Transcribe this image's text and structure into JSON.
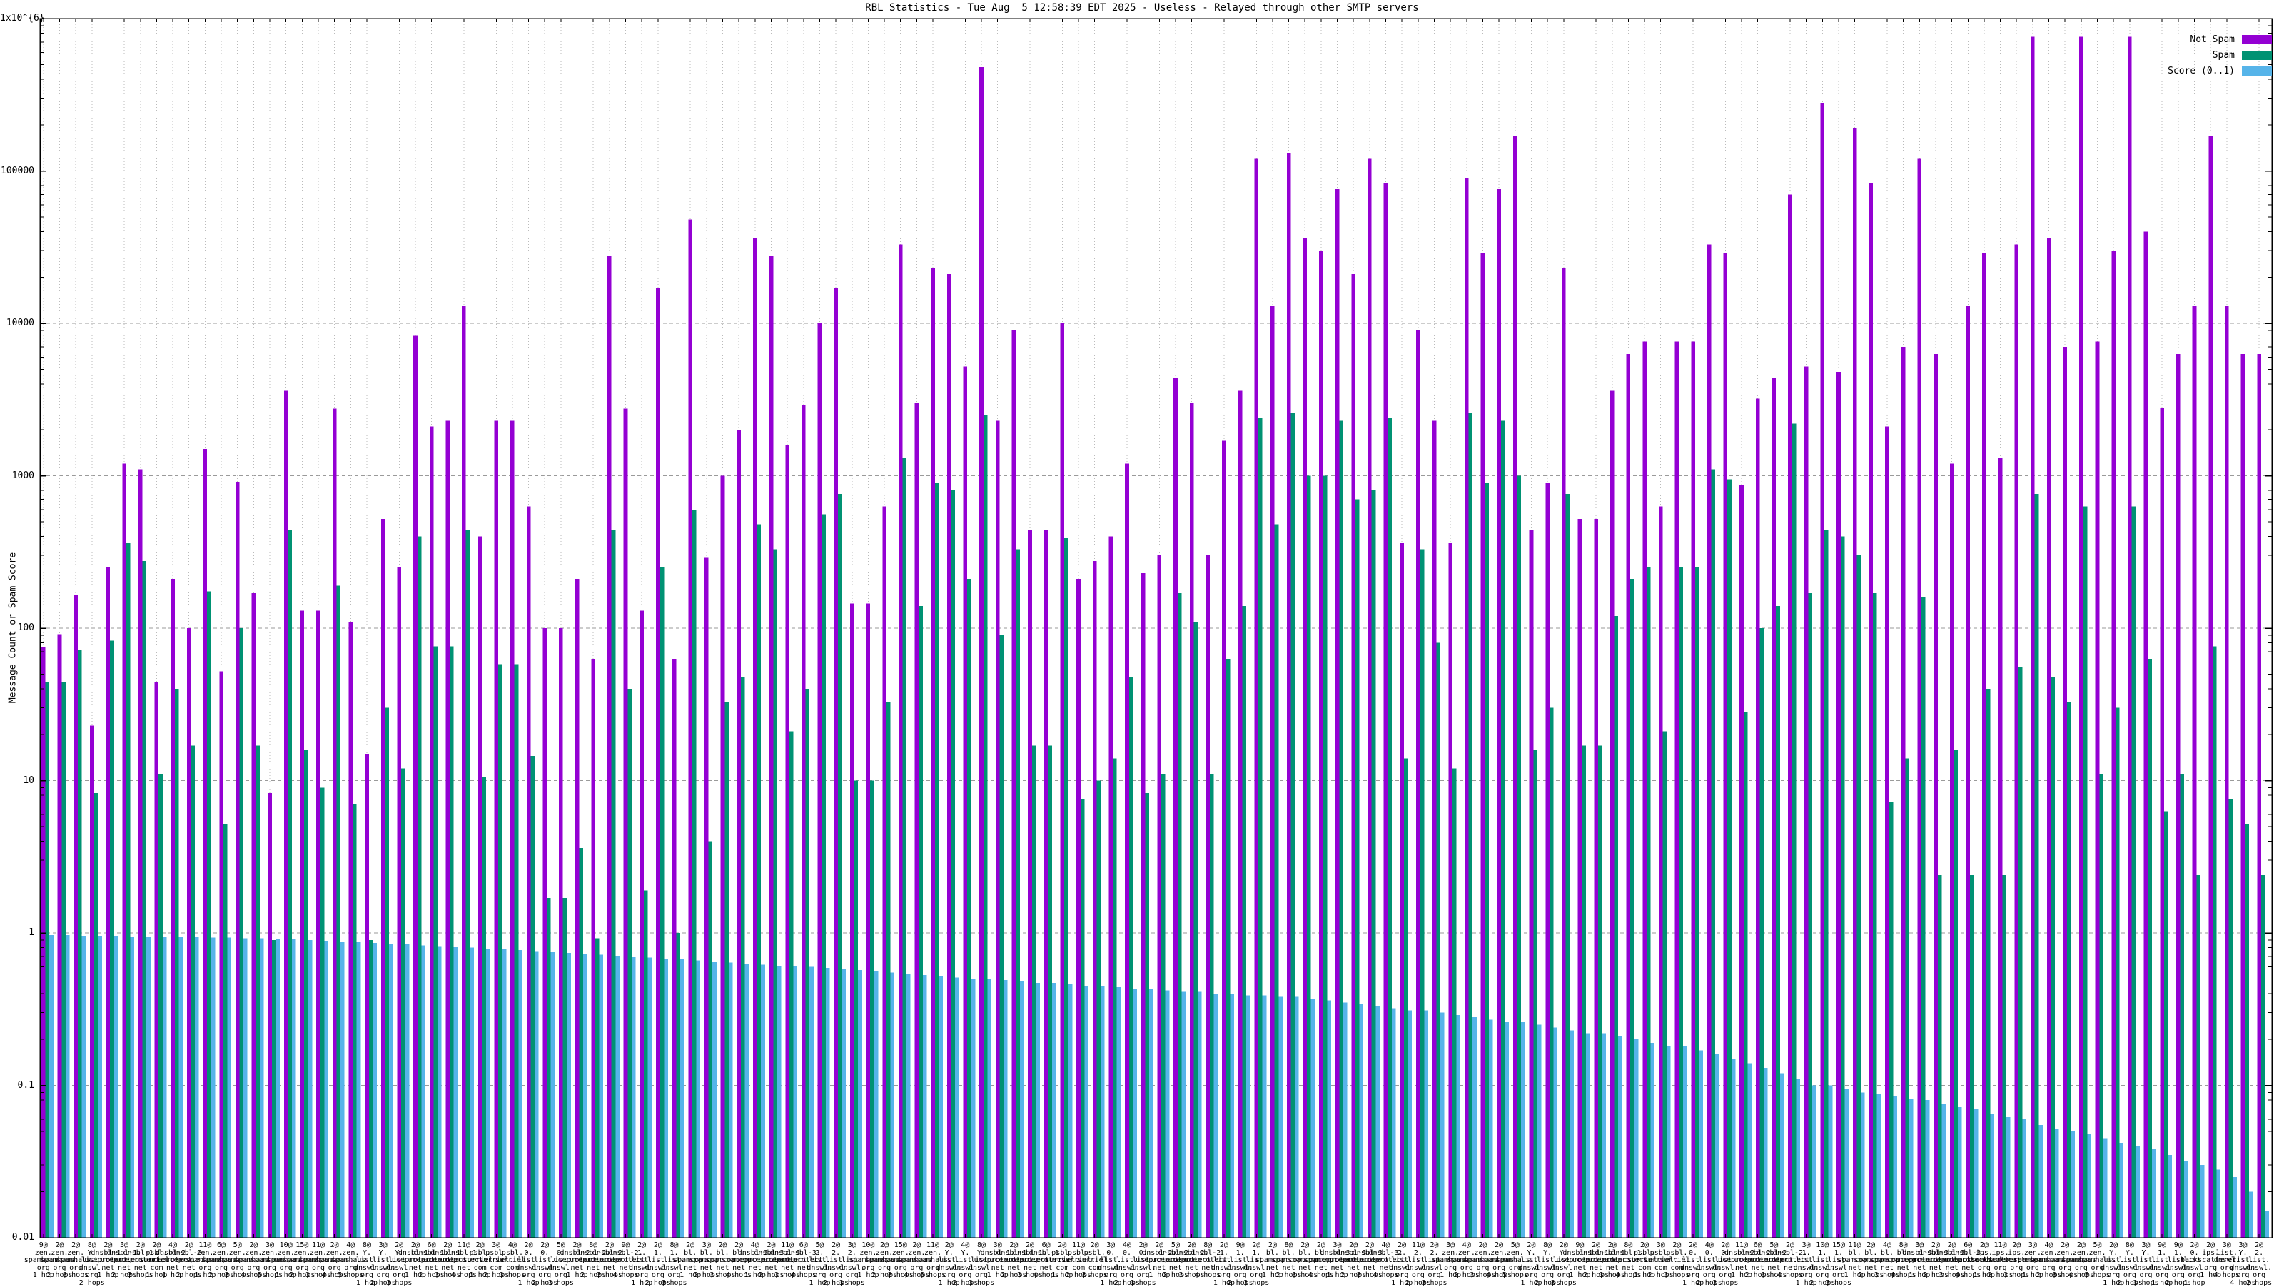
{
  "title": "RBL Statistics - Tue Aug  5 12:58:39 EDT 2025 - Useless - Relayed through other SMTP servers",
  "y_axis": {
    "label": "Message Count or Spam Score",
    "ticks": [
      "1x10^{6}",
      "100000",
      "10000",
      "1000",
      "100",
      "10",
      "1",
      "0.1",
      "0.01"
    ],
    "tick_decades": [
      6,
      5,
      4,
      3,
      2,
      1,
      0,
      -1,
      -2
    ]
  },
  "legend": {
    "items": [
      {
        "label": "Not Spam",
        "color": "#9400d3"
      },
      {
        "label": "Spam",
        "color": "#009273"
      },
      {
        "label": "Score (0..1)",
        "color": "#56b4e9"
      }
    ]
  },
  "colors": {
    "not_spam": "#9400d3",
    "spam": "#009273",
    "score": "#56b4e9",
    "grid_major": "#9a9a9a",
    "grid_minor": "#bbbbbb",
    "axis": "#000000",
    "background": "#ffffff"
  },
  "chart_data": {
    "type": "bar",
    "log_y": true,
    "ylim": [
      0.01,
      1000000
    ],
    "grid": true,
    "legend_position": "top-right",
    "title": "RBL Statistics - Tue Aug  5 12:58:39 EDT 2025 - Useless - Relayed through other SMTP servers",
    "ylabel": "Message Count or Spam Score",
    "series_names": [
      "Not Spam",
      "Spam",
      "Score (0..1)"
    ],
    "group_columns": [
      "count_label",
      "host",
      "hops",
      "not_spam",
      "spam",
      "score"
    ],
    "groups": [
      [
        "9@",
        "zen.spamhaus.org",
        "1 hop",
        75,
        44,
        0.97
      ],
      [
        "2@",
        "zen.spamhaus.org",
        "2 hops",
        91,
        44,
        0.97
      ],
      [
        "2@",
        "zen.spamhaus.org",
        "3 hops",
        165,
        72,
        0.96
      ],
      [
        "8@",
        "Y.list.dnswl.org",
        "2 hops",
        23,
        8.3,
        0.96
      ],
      [
        "2@",
        "dnsbl-1.uceprotect.net",
        "1 hop",
        250,
        83,
        0.96
      ],
      [
        "3@",
        "dnsbl-1.uceprotect.net",
        "2 hops",
        1200,
        360,
        0.95
      ],
      [
        "2@",
        "dnsbl-1.uceprotect.net",
        "3 hops",
        1100,
        275,
        0.95
      ],
      [
        "2@",
        "psbl.surriel.com",
        "1 hop",
        44,
        11,
        0.95
      ],
      [
        "4@",
        "dnsbl-2.uceprotect.net",
        "1 hop",
        210,
        40,
        0.94
      ],
      [
        "2@",
        "dnsbl-2.uceprotect.net",
        "2 hops",
        100,
        17,
        0.94
      ],
      [
        "11@",
        "zen.spamhaus.org",
        "1 hop",
        1500,
        174,
        0.93
      ],
      [
        "6@",
        "zen.spamhaus.org",
        "2 hops",
        52,
        5.2,
        0.93
      ],
      [
        "5@",
        "zen.spamhaus.org",
        "3 hops",
        910,
        100,
        0.92
      ],
      [
        "2@",
        "zen.spamhaus.org",
        "4 hops",
        170,
        17,
        0.92
      ],
      [
        "3@",
        "zen.spamhaus.org",
        "5 hops",
        8.3,
        0.9,
        0.91
      ],
      [
        "10@",
        "zen.spamhaus.org",
        "1 hop",
        3600,
        440,
        0.91
      ],
      [
        "15@",
        "zen.spamhaus.org",
        "2 hops",
        130,
        16,
        0.9
      ],
      [
        "11@",
        "zen.spamhaus.org",
        "3 hops",
        130,
        9,
        0.89
      ],
      [
        "2@",
        "zen.spamhaus.org",
        "4 hops",
        2750,
        190,
        0.88
      ],
      [
        "4@",
        "zen.spamhaus.org",
        "5 hops",
        110,
        7,
        0.87
      ],
      [
        "8@",
        "Y.list.dnswl.org",
        "1 hop",
        15,
        0.9,
        0.86
      ],
      [
        "3@",
        "Y.list.dnswl.org",
        "2 hops",
        520,
        30,
        0.85
      ],
      [
        "2@",
        "Y.list.dnswl.org",
        "3 hops",
        250,
        12,
        0.84
      ],
      [
        "2@",
        "dnsbl-1.uceprotect.net",
        "1 hop",
        8300,
        400,
        0.83
      ],
      [
        "6@",
        "dnsbl-1.uceprotect.net",
        "2 hops",
        2100,
        76,
        0.82
      ],
      [
        "2@",
        "dnsbl-1.uceprotect.net",
        "3 hops",
        2300,
        76,
        0.81
      ],
      [
        "11@",
        "dnsbl-1.uceprotect.net",
        "4 hops",
        13000,
        440,
        0.8
      ],
      [
        "2@",
        "psbl.surriel.com",
        "1 hop",
        400,
        10.5,
        0.79
      ],
      [
        "3@",
        "psbl.surriel.com",
        "2 hops",
        2300,
        58,
        0.78
      ],
      [
        "4@",
        "psbl.surriel.com",
        "3 hops",
        2300,
        58,
        0.77
      ],
      [
        "2@",
        "0.list.dnswl.org",
        "1 hop",
        630,
        14.5,
        0.76
      ],
      [
        "2@",
        "0.list.dnswl.org",
        "2 hops",
        100,
        1.7,
        0.75
      ],
      [
        "5@",
        "0.list.dnswl.org",
        "3 hops",
        100,
        1.7,
        0.74
      ],
      [
        "2@",
        "dnsbl-2.uceprotect.net",
        "1 hop",
        210,
        3.6,
        0.73
      ],
      [
        "8@",
        "dnsbl-2.uceprotect.net",
        "2 hops",
        63,
        0.92,
        0.72
      ],
      [
        "2@",
        "dnsbl-2.uceprotect.net",
        "3 hops",
        27500,
        440,
        0.71
      ],
      [
        "9@",
        "dnsbl-2.uceprotect.net",
        "4 hops",
        2750,
        40,
        0.7
      ],
      [
        "2@",
        "1.list.dnswl.org",
        "1 hop",
        130,
        1.9,
        0.69
      ],
      [
        "2@",
        "1.list.dnswl.org",
        "2 hops",
        17000,
        250,
        0.68
      ],
      [
        "8@",
        "1.list.dnswl.org",
        "3 hops",
        63,
        1,
        0.67
      ],
      [
        "2@",
        "bl.spamcop.net",
        "1 hop",
        48000,
        600,
        0.66
      ],
      [
        "3@",
        "bl.spamcop.net",
        "2 hops",
        290,
        4,
        0.65
      ],
      [
        "2@",
        "bl.spamcop.net",
        "3 hops",
        1000,
        33,
        0.64
      ],
      [
        "2@",
        "bl.spamcop.net",
        "4 hops",
        2000,
        48,
        0.63
      ],
      [
        "4@",
        "dnsbl-3.uceprotect.net",
        "1 hop",
        36000,
        480,
        0.62
      ],
      [
        "2@",
        "dnsbl-3.uceprotect.net",
        "2 hops",
        27500,
        330,
        0.61
      ],
      [
        "11@",
        "dnsbl-3.uceprotect.net",
        "3 hops",
        1600,
        21,
        0.61
      ],
      [
        "6@",
        "dnsbl-3.uceprotect.net",
        "4 hops",
        2900,
        40,
        0.6
      ],
      [
        "5@",
        "2.list.dnswl.org",
        "1 hop",
        10000,
        560,
        0.59
      ],
      [
        "2@",
        "2.list.dnswl.org",
        "2 hops",
        17000,
        760,
        0.58
      ],
      [
        "3@",
        "2.list.dnswl.org",
        "3 hops",
        145,
        10,
        0.57
      ],
      [
        "10@",
        "zen.spamhaus.org",
        "1 hop",
        145,
        10,
        0.56
      ],
      [
        "2@",
        "zen.spamhaus.org",
        "2 hops",
        630,
        33,
        0.55
      ],
      [
        "15@",
        "zen.spamhaus.org",
        "3 hops",
        33000,
        1300,
        0.54
      ],
      [
        "2@",
        "zen.spamhaus.org",
        "4 hops",
        3000,
        140,
        0.53
      ],
      [
        "11@",
        "zen.spamhaus.org",
        "5 hops",
        23000,
        900,
        0.52
      ],
      [
        "2@",
        "Y.list.dnswl.org",
        "1 hop",
        21000,
        800,
        0.51
      ],
      [
        "4@",
        "Y.list.dnswl.org",
        "2 hops",
        5200,
        210,
        0.5
      ],
      [
        "8@",
        "Y.list.dnswl.org",
        "3 hops",
        480000,
        2500,
        0.5
      ],
      [
        "3@",
        "dnsbl-1.uceprotect.net",
        "1 hop",
        2300,
        90,
        0.49
      ],
      [
        "2@",
        "dnsbl-1.uceprotect.net",
        "2 hops",
        9000,
        330,
        0.48
      ],
      [
        "2@",
        "dnsbl-1.uceprotect.net",
        "3 hops",
        440,
        17,
        0.47
      ],
      [
        "6@",
        "dnsbl-1.uceprotect.net",
        "4 hops",
        440,
        17,
        0.47
      ],
      [
        "2@",
        "psbl.surriel.com",
        "1 hop",
        10000,
        390,
        0.46
      ],
      [
        "11@",
        "psbl.surriel.com",
        "2 hops",
        210,
        7.6,
        0.45
      ],
      [
        "2@",
        "psbl.surriel.com",
        "3 hops",
        275,
        10,
        0.45
      ],
      [
        "3@",
        "0.list.dnswl.org",
        "1 hop",
        400,
        14,
        0.44
      ],
      [
        "4@",
        "0.list.dnswl.org",
        "2 hops",
        1200,
        48,
        0.43
      ],
      [
        "2@",
        "0.list.dnswl.org",
        "3 hops",
        230,
        8.3,
        0.43
      ],
      [
        "2@",
        "dnsbl-2.uceprotect.net",
        "1 hop",
        300,
        11,
        0.42
      ],
      [
        "5@",
        "dnsbl-2.uceprotect.net",
        "2 hops",
        4400,
        170,
        0.41
      ],
      [
        "2@",
        "dnsbl-2.uceprotect.net",
        "3 hops",
        3000,
        110,
        0.41
      ],
      [
        "8@",
        "dnsbl-2.uceprotect.net",
        "4 hops",
        300,
        11,
        0.4
      ],
      [
        "2@",
        "1.list.dnswl.org",
        "1 hop",
        1700,
        63,
        0.4
      ],
      [
        "9@",
        "1.list.dnswl.org",
        "2 hops",
        3600,
        140,
        0.39
      ],
      [
        "2@",
        "1.list.dnswl.org",
        "3 hops",
        120000,
        2400,
        0.39
      ],
      [
        "2@",
        "bl.spamcop.net",
        "1 hop",
        13000,
        480,
        0.38
      ],
      [
        "8@",
        "bl.spamcop.net",
        "2 hops",
        130000,
        2600,
        0.38
      ],
      [
        "2@",
        "bl.spamcop.net",
        "3 hops",
        36000,
        1000,
        0.37
      ],
      [
        "2@",
        "bl.spamcop.net",
        "4 hops",
        30000,
        1000,
        0.36
      ],
      [
        "3@",
        "dnsbl-3.uceprotect.net",
        "1 hop",
        76000,
        2300,
        0.35
      ],
      [
        "2@",
        "dnsbl-3.uceprotect.net",
        "2 hops",
        21000,
        700,
        0.34
      ],
      [
        "2@",
        "dnsbl-3.uceprotect.net",
        "3 hops",
        120000,
        800,
        0.33
      ],
      [
        "4@",
        "dnsbl-3.uceprotect.net",
        "4 hops",
        83000,
        2400,
        0.32
      ],
      [
        "2@",
        "2.list.dnswl.org",
        "1 hop",
        360,
        14,
        0.31
      ],
      [
        "11@",
        "2.list.dnswl.org",
        "2 hops",
        9000,
        330,
        0.31
      ],
      [
        "2@",
        "2.list.dnswl.org",
        "3 hops",
        2300,
        80,
        0.3
      ],
      [
        "3@",
        "zen.spamhaus.org",
        "1 hop",
        360,
        12,
        0.29
      ],
      [
        "4@",
        "zen.spamhaus.org",
        "2 hops",
        90000,
        2600,
        0.28
      ],
      [
        "2@",
        "zen.spamhaus.org",
        "3 hops",
        29000,
        900,
        0.27
      ],
      [
        "2@",
        "zen.spamhaus.org",
        "4 hops",
        76000,
        2300,
        0.26
      ],
      [
        "5@",
        "zen.spamhaus.org",
        "5 hops",
        170000,
        1000,
        0.26
      ],
      [
        "2@",
        "Y.list.dnswl.org",
        "1 hop",
        440,
        16,
        0.25
      ],
      [
        "8@",
        "Y.list.dnswl.org",
        "2 hops",
        900,
        30,
        0.24
      ],
      [
        "2@",
        "Y.list.dnswl.org",
        "3 hops",
        23000,
        760,
        0.23
      ],
      [
        "9@",
        "dnsbl-1.uceprotect.net",
        "1 hop",
        520,
        17,
        0.22
      ],
      [
        "2@",
        "dnsbl-1.uceprotect.net",
        "2 hops",
        520,
        17,
        0.22
      ],
      [
        "2@",
        "dnsbl-1.uceprotect.net",
        "3 hops",
        3600,
        120,
        0.21
      ],
      [
        "8@",
        "dnsbl-1.uceprotect.net",
        "4 hops",
        6300,
        210,
        0.2
      ],
      [
        "2@",
        "psbl.surriel.com",
        "1 hop",
        7600,
        250,
        0.19
      ],
      [
        "3@",
        "psbl.surriel.com",
        "2 hops",
        630,
        21,
        0.18
      ],
      [
        "2@",
        "psbl.surriel.com",
        "3 hops",
        7600,
        250,
        0.18
      ],
      [
        "2@",
        "0.list.dnswl.org",
        "1 hop",
        7600,
        250,
        0.17
      ],
      [
        "4@",
        "0.list.dnswl.org",
        "2 hops",
        33000,
        1100,
        0.16
      ],
      [
        "2@",
        "0.list.dnswl.org",
        "3 hops",
        29000,
        950,
        0.15
      ],
      [
        "11@",
        "dnsbl-2.uceprotect.net",
        "1 hop",
        870,
        28,
        0.14
      ],
      [
        "6@",
        "dnsbl-2.uceprotect.net",
        "2 hops",
        3200,
        100,
        0.13
      ],
      [
        "5@",
        "dnsbl-2.uceprotect.net",
        "3 hops",
        4400,
        140,
        0.12
      ],
      [
        "2@",
        "dnsbl-2.uceprotect.net",
        "4 hops",
        70000,
        2200,
        0.11
      ],
      [
        "3@",
        "1.list.dnswl.org",
        "1 hop",
        5200,
        170,
        0.1
      ],
      [
        "10@",
        "1.list.dnswl.org",
        "2 hops",
        280000,
        440,
        0.1
      ],
      [
        "15@",
        "1.list.dnswl.org",
        "3 hops",
        4800,
        400,
        0.095
      ],
      [
        "11@",
        "bl.spamcop.net",
        "1 hop",
        190000,
        300,
        0.09
      ],
      [
        "2@",
        "bl.spamcop.net",
        "2 hops",
        83000,
        170,
        0.088
      ],
      [
        "4@",
        "bl.spamcop.net",
        "3 hops",
        2100,
        7.2,
        0.085
      ],
      [
        "8@",
        "bl.spamcop.net",
        "4 hops",
        7000,
        14,
        0.082
      ],
      [
        "3@",
        "dnsbl-3.uceprotect.net",
        "1 hop",
        120000,
        160,
        0.08
      ],
      [
        "2@",
        "dnsbl-3.uceprotect.net",
        "2 hops",
        6300,
        2.4,
        0.075
      ],
      [
        "2@",
        "dnsbl-3.uceprotect.net",
        "3 hops",
        1200,
        16,
        0.072
      ],
      [
        "6@",
        "dnsbl-3.uceprotect.net",
        "4 hops",
        13000,
        2.4,
        0.07
      ],
      [
        "2@",
        "ips.backscatterer.org",
        "1 hop",
        29000,
        40,
        0.065
      ],
      [
        "11@",
        "ips.backscatterer.org",
        "2 hops",
        1300,
        2.4,
        0.062
      ],
      [
        "2@",
        "ips.backscatterer.org",
        "3 hops",
        33000,
        56,
        0.06
      ],
      [
        "3@",
        "zen.spamhaus.org",
        "1 hop",
        760000,
        760,
        0.055
      ],
      [
        "4@",
        "zen.spamhaus.org",
        "2 hops",
        36000,
        48,
        0.052
      ],
      [
        "2@",
        "zen.spamhaus.org",
        "3 hops",
        7000,
        33,
        0.05
      ],
      [
        "2@",
        "zen.spamhaus.org",
        "4 hops",
        760000,
        630,
        0.048
      ],
      [
        "5@",
        "zen.spamhaus.org",
        "5 hops",
        7600,
        11,
        0.045
      ],
      [
        "2@",
        "Y.list.dnswl.org",
        "1 hop",
        30000,
        30,
        0.042
      ],
      [
        "8@",
        "Y.list.dnswl.org",
        "2 hops",
        760000,
        630,
        0.04
      ],
      [
        "3@",
        "Y.list.dnswl.org",
        "3 hops",
        40000,
        63,
        0.038
      ],
      [
        "9@",
        "1.list.dnswl.org",
        "1 hop",
        2800,
        6.3,
        0.035
      ],
      [
        "9@",
        "1.list.dnswl.org",
        "2 hops",
        6300,
        11,
        0.032
      ],
      [
        "2@",
        "0.list.dnswl.org",
        "1 hop",
        13000,
        2.4,
        0.03
      ],
      [
        "2@",
        "ips.backscatterer.org",
        "1 hop",
        170000,
        76,
        0.028
      ],
      [
        "3@",
        "list.dnswl.org",
        "4 hops",
        13000,
        7.6,
        0.025
      ],
      [
        "3@",
        "Y.list.dnswl.org",
        "4 hops",
        6300,
        5.2,
        0.02
      ],
      [
        "2@",
        "2.list.dnswl.org",
        "2 hops",
        6300,
        2.4,
        0.015
      ]
    ]
  }
}
